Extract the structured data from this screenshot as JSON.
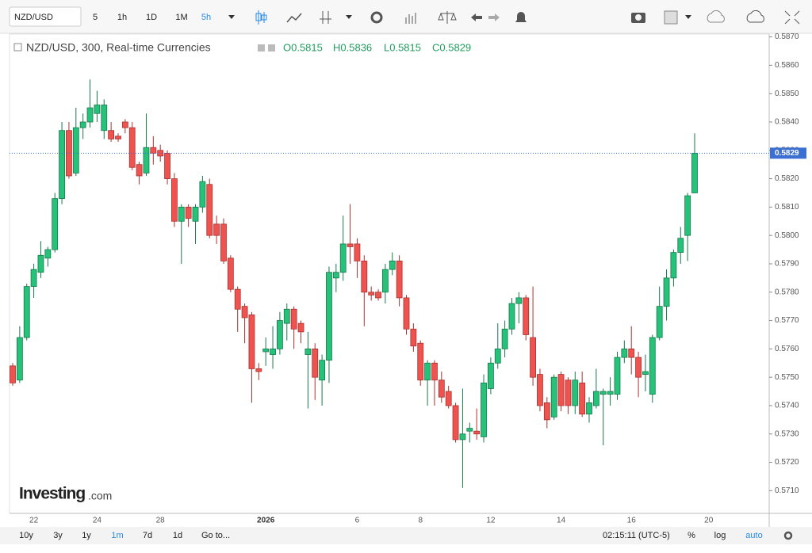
{
  "toolbar": {
    "symbol": "NZD/USD",
    "intervals": [
      "5",
      "1h",
      "1D",
      "1M",
      "5h"
    ]
  },
  "chart_data": {
    "type": "candlestick",
    "title": "NZD/USD, 300, Real-time Currencies",
    "ohlc_legend": [
      "O0.5815",
      "H0.5836",
      "L0.5815",
      "C0.5829"
    ],
    "categories": [
      null,
      null,
      null,
      "22",
      null,
      null,
      null,
      null,
      null,
      null,
      null,
      null,
      "24",
      null,
      null,
      null,
      null,
      null,
      null,
      null,
      null,
      "28",
      null,
      null,
      null,
      null,
      null,
      null,
      null,
      null,
      null,
      null,
      null,
      null,
      null,
      null,
      "2026",
      null,
      null,
      null,
      null,
      null,
      null,
      null,
      null,
      null,
      null,
      null,
      null,
      "6",
      null,
      null,
      null,
      null,
      null,
      null,
      null,
      null,
      "8",
      null,
      null,
      null,
      null,
      null,
      null,
      null,
      null,
      null,
      "12",
      null,
      null,
      null,
      null,
      null,
      null,
      null,
      null,
      null,
      "14",
      null,
      null,
      null,
      null,
      null,
      null,
      null,
      null,
      null,
      "16",
      null,
      null,
      null,
      null,
      null,
      null,
      null,
      null,
      null,
      null,
      "20"
    ],
    "open": [
      0.5754,
      0.5749,
      0.5764,
      0.5782,
      0.5787,
      0.5792,
      0.5795,
      0.5813,
      0.5837,
      0.5822,
      0.5838,
      0.584,
      0.5843,
      0.5837,
      0.5837,
      0.5835,
      0.584,
      0.5838,
      0.5825,
      0.5822,
      0.5831,
      0.583,
      0.5829,
      0.582,
      0.5805,
      0.581,
      0.5805,
      0.581,
      0.5818,
      0.5804,
      0.5804,
      0.5792,
      0.5781,
      0.5775,
      0.5772,
      0.5753,
      0.5759,
      0.5758,
      0.576,
      0.5769,
      0.5774,
      0.5769,
      0.5758,
      0.576,
      0.5749,
      0.5756,
      0.5785,
      0.5787,
      0.5797,
      0.5797,
      0.5791,
      0.578,
      0.578,
      0.578,
      0.5788,
      0.5791,
      0.5778,
      0.5767,
      0.5762,
      0.5749,
      0.5755,
      0.5749,
      0.5745,
      0.574,
      0.5728,
      0.5731,
      0.5731,
      0.5729,
      0.5746,
      0.5755,
      0.576,
      0.5767,
      0.5776,
      0.5778,
      0.5764,
      0.5751,
      0.5741,
      0.5736,
      0.5751,
      0.5749,
      0.574,
      0.5748,
      0.5737,
      0.574,
      0.5744,
      0.5744,
      0.5744,
      0.5757,
      0.576,
      0.5757,
      0.5751,
      0.5744,
      0.5764,
      0.5775,
      0.5785,
      0.5794,
      0.58,
      0.5815,
      null,
      null
    ],
    "high": [
      0.5755,
      0.5768,
      0.5783,
      0.579,
      0.5798,
      0.5796,
      0.5815,
      0.584,
      0.584,
      0.5845,
      0.5843,
      0.5855,
      0.5851,
      0.5848,
      0.584,
      0.5836,
      0.5841,
      0.584,
      0.5826,
      0.5843,
      0.5835,
      0.5832,
      0.583,
      0.5822,
      0.5811,
      0.5811,
      0.5811,
      0.5821,
      0.582,
      0.5807,
      0.5806,
      0.5793,
      0.5782,
      0.5776,
      0.5773,
      0.5755,
      0.5764,
      0.5768,
      0.5773,
      0.5776,
      0.5775,
      0.577,
      0.5766,
      0.5762,
      0.5758,
      0.5789,
      0.579,
      0.5807,
      0.5811,
      0.5799,
      0.5793,
      0.5782,
      0.5781,
      0.579,
      0.5794,
      0.5793,
      0.5779,
      0.5769,
      0.5763,
      0.5756,
      0.5756,
      0.5752,
      0.5747,
      0.5741,
      0.5746,
      0.5734,
      0.5739,
      0.5751,
      0.5757,
      0.5769,
      0.577,
      0.5778,
      0.578,
      0.5779,
      0.5782,
      0.5753,
      0.5743,
      0.5751,
      0.5752,
      0.575,
      0.5752,
      0.5752,
      0.5743,
      0.5753,
      0.5746,
      0.575,
      0.5759,
      0.5763,
      0.5768,
      0.5759,
      0.5758,
      0.5765,
      0.5782,
      0.5788,
      0.5795,
      0.5803,
      0.5815,
      0.5836,
      null,
      null
    ],
    "low": [
      0.5747,
      0.5748,
      0.5763,
      0.5778,
      0.5785,
      0.5789,
      0.5794,
      0.5811,
      0.582,
      0.5821,
      0.5834,
      0.5838,
      0.584,
      0.5834,
      0.5833,
      0.5833,
      0.5836,
      0.5823,
      0.5818,
      0.5821,
      0.5825,
      0.5826,
      0.5818,
      0.5803,
      0.579,
      0.5803,
      0.5797,
      0.5808,
      0.5799,
      0.5797,
      0.579,
      0.578,
      0.5766,
      0.5762,
      0.5741,
      0.5749,
      0.5754,
      0.5753,
      0.5758,
      0.5763,
      0.576,
      0.5762,
      0.5739,
      0.5742,
      0.574,
      0.5748,
      0.578,
      0.5784,
      0.579,
      0.5785,
      0.5768,
      0.5777,
      0.5777,
      0.5776,
      0.5786,
      0.5775,
      0.5765,
      0.5759,
      0.5747,
      0.574,
      0.574,
      0.5741,
      0.5739,
      0.5727,
      0.5711,
      0.5727,
      0.5728,
      0.5727,
      0.5744,
      0.5753,
      0.5757,
      0.5765,
      0.5769,
      0.5763,
      0.5747,
      0.5738,
      0.5732,
      0.5735,
      0.5738,
      0.5737,
      0.5737,
      0.5736,
      0.5734,
      0.5739,
      0.5726,
      0.574,
      0.5742,
      0.5755,
      0.5751,
      0.5743,
      0.5745,
      0.5741,
      0.5763,
      0.577,
      0.5782,
      0.579,
      0.5791,
      0.5815,
      null,
      null
    ],
    "close": [
      0.5748,
      0.5764,
      0.5782,
      0.5788,
      0.5793,
      0.5795,
      0.5813,
      0.5837,
      0.5821,
      0.5838,
      0.584,
      0.5845,
      0.5846,
      0.5846,
      0.5834,
      0.5834,
      0.5838,
      0.5824,
      0.5821,
      0.5831,
      0.5829,
      0.5828,
      0.582,
      0.5805,
      0.581,
      0.5806,
      0.581,
      0.5819,
      0.58,
      0.58,
      0.5791,
      0.5781,
      0.5774,
      0.5771,
      0.5753,
      0.5752,
      0.576,
      0.576,
      0.577,
      0.5774,
      0.5767,
      0.5766,
      0.576,
      0.575,
      0.5756,
      0.5787,
      0.5787,
      0.5797,
      0.5796,
      0.5791,
      0.578,
      0.5779,
      0.5778,
      0.5788,
      0.5791,
      0.5778,
      0.5767,
      0.5761,
      0.5749,
      0.5755,
      0.5749,
      0.5743,
      0.574,
      0.5728,
      0.573,
      0.5732,
      0.573,
      0.5748,
      0.5755,
      0.576,
      0.5767,
      0.5776,
      0.5778,
      0.5765,
      0.575,
      0.574,
      0.5735,
      0.575,
      0.574,
      0.574,
      0.5749,
      0.5737,
      0.5741,
      0.5745,
      0.5745,
      0.5745,
      0.5757,
      0.576,
      0.5757,
      0.575,
      0.5752,
      0.5764,
      0.5775,
      0.5785,
      0.5794,
      0.5799,
      0.5814,
      0.5829,
      null,
      null
    ],
    "up_color": "#26c27a",
    "down_color": "#ef5350",
    "last_price": 0.5829,
    "last_price_color": "#3b6fd1",
    "ylim": [
      0.5702,
      0.5871
    ],
    "yticks": [
      {
        "value": 0.571,
        "label": "0.5710"
      },
      {
        "value": 0.572,
        "label": "0.5720"
      },
      {
        "value": 0.573,
        "label": "0.5730"
      },
      {
        "value": 0.574,
        "label": "0.5740"
      },
      {
        "value": 0.575,
        "label": "0.5750"
      },
      {
        "value": 0.576,
        "label": "0.5760"
      },
      {
        "value": 0.577,
        "label": "0.5770"
      },
      {
        "value": 0.578,
        "label": "0.5780"
      },
      {
        "value": 0.579,
        "label": "0.5790"
      },
      {
        "value": 0.58,
        "label": "0.5800"
      },
      {
        "value": 0.581,
        "label": "0.5810"
      },
      {
        "value": 0.582,
        "label": "0.5820"
      },
      {
        "value": 0.583,
        "label": "0.5830"
      },
      {
        "value": 0.584,
        "label": "0.5840"
      },
      {
        "value": 0.585,
        "label": "0.5850"
      },
      {
        "value": 0.586,
        "label": "0.5860"
      },
      {
        "value": 0.587,
        "label": "0.5870"
      }
    ],
    "grid": false,
    "watermark": [
      "Investing",
      ".com"
    ]
  },
  "bottom_bar": {
    "ranges": [
      "10y",
      "3y",
      "1y",
      "1m",
      "7d",
      "1d"
    ],
    "goto": "Go to...",
    "time": "02:15:11 (UTC-5)",
    "options": [
      "%",
      "log",
      "auto"
    ]
  }
}
